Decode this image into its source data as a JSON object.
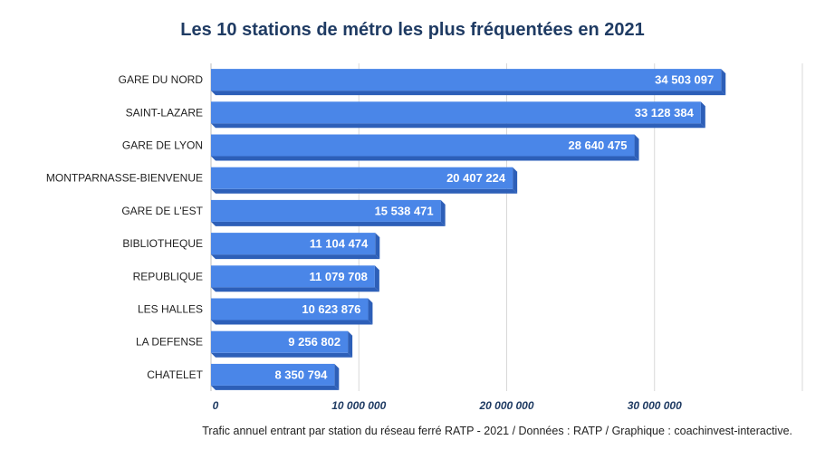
{
  "chart_data": {
    "type": "bar",
    "orientation": "horizontal",
    "title": "Les 10 stations de métro les plus fréquentées en 2021",
    "categories": [
      "GARE DU NORD",
      "SAINT-LAZARE",
      "GARE DE LYON",
      "MONTPARNASSE-BIENVENUE",
      "GARE DE L'EST",
      "BIBLIOTHEQUE",
      "REPUBLIQUE",
      "LES HALLES",
      "LA DEFENSE",
      "CHATELET"
    ],
    "values": [
      34503097,
      33128384,
      28640475,
      20407224,
      15538471,
      11104474,
      11079708,
      10623876,
      9256802,
      8350794
    ],
    "value_labels": [
      "34 503 097",
      "33 128 384",
      "28 640 475",
      "20 407 224",
      "15 538 471",
      "11 104 474",
      "11 079 708",
      "10 623 876",
      "9 256 802",
      "8 350 794"
    ],
    "xlim": [
      0,
      40000000
    ],
    "xticks": [
      0,
      10000000,
      20000000,
      30000000
    ],
    "xtick_labels": [
      "0",
      "10 000 000",
      "20 000 000",
      "30 000 000"
    ],
    "grid": true,
    "bar_color": "#4a86e8",
    "bar_side_color": "#2d5fb8",
    "caption": "Trafic annuel entrant par station du réseau ferré RATP - 2021 / Données : RATP / Graphique : coachinvest-interactive."
  }
}
